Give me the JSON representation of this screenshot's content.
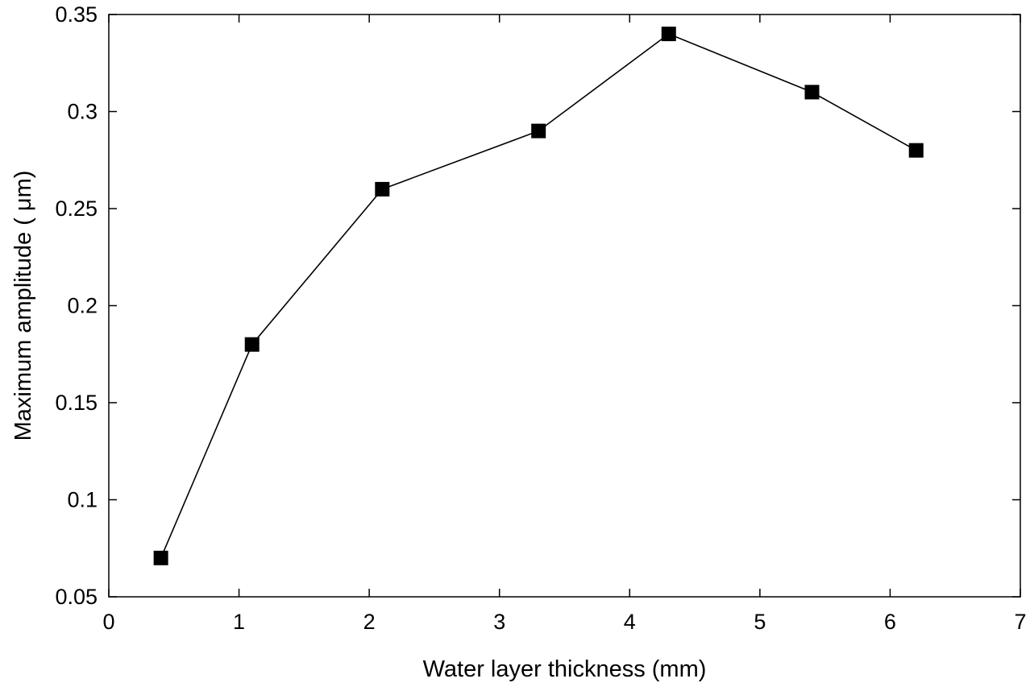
{
  "chart_data": {
    "type": "line",
    "title": "",
    "xlabel": "Water layer thickness (mm)",
    "ylabel": "Maximum amplitude ( μm)",
    "xlim": [
      0,
      7
    ],
    "ylim": [
      0.05,
      0.35
    ],
    "x_ticks": [
      0,
      1,
      2,
      3,
      4,
      5,
      6,
      7
    ],
    "x_tick_labels": [
      "0",
      "1",
      "2",
      "3",
      "4",
      "5",
      "6",
      "7"
    ],
    "y_ticks": [
      0.05,
      0.1,
      0.15,
      0.2,
      0.25,
      0.3,
      0.35
    ],
    "y_tick_labels": [
      "0.05",
      "0.1",
      "0.15",
      "0.2",
      "0.25",
      "0.3",
      "0.35"
    ],
    "grid": false,
    "legend": false,
    "marker": "square",
    "colors": {
      "line": "#000000",
      "marker": "#000000",
      "axes": "#000000"
    },
    "series": [
      {
        "x": [
          0.4,
          1.1,
          2.1,
          3.3,
          4.3,
          5.4,
          6.2
        ],
        "y": [
          0.07,
          0.18,
          0.26,
          0.29,
          0.34,
          0.31,
          0.28
        ]
      }
    ]
  }
}
